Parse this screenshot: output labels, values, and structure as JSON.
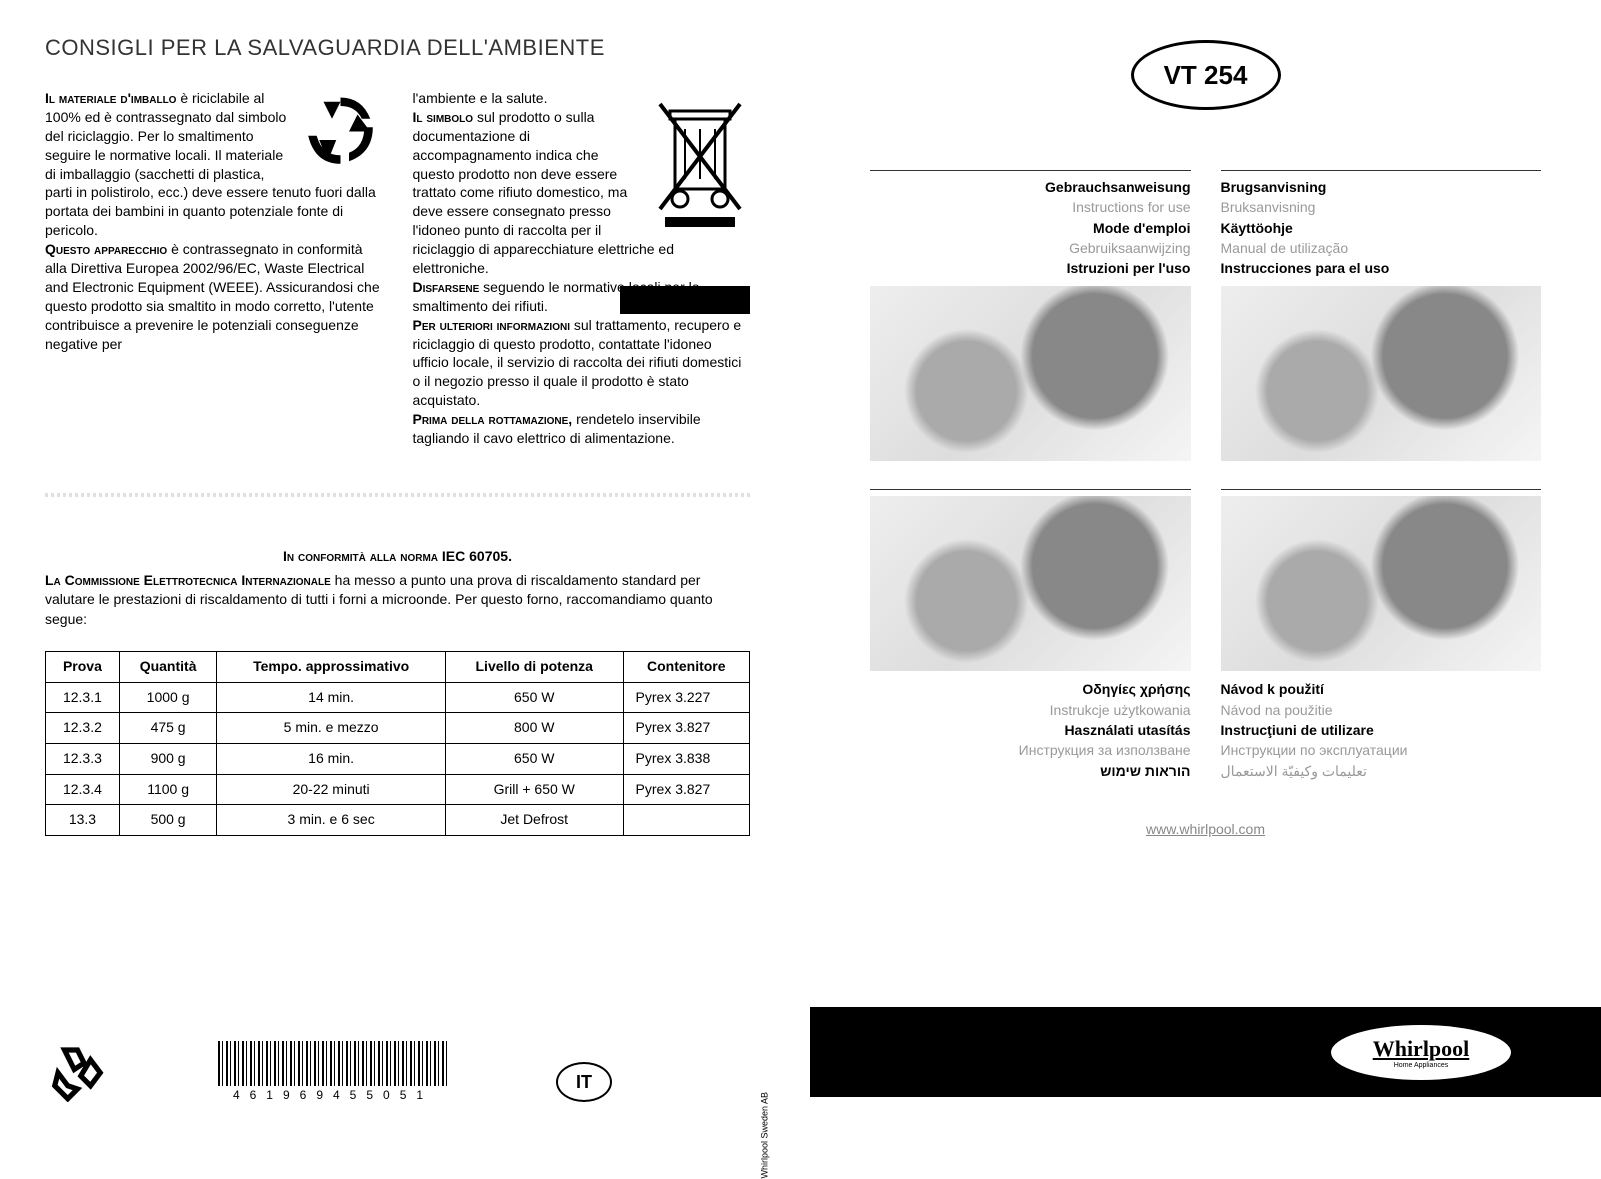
{
  "left": {
    "title": "CONSIGLI PER LA SALVAGUARDIA DELL'AMBIENTE",
    "col1": {
      "lead1_sc": "Il materiale d'imballo",
      "p1": " è riciclabile al 100% ed è contrassegnato dal simbolo del riciclaggio. Per lo smaltimento seguire le normative locali. Il materiale di imballaggio (sacchetti di plastica, parti in polistirolo, ecc.) deve essere tenuto fuori dalla portata dei bambini in quanto potenziale fonte di pericolo.",
      "lead2_sc": "Questo apparecchio",
      "p2": " è contrassegnato in conformità alla Direttiva Europea 2002/96/EC, Waste Electrical and Electronic Equipment (WEEE). Assicurandosi che questo prodotto sia smaltito in modo corretto, l'utente contribuisce a prevenire le potenziali conseguenze negative per"
    },
    "col2": {
      "p1": "l'ambiente e la salute.",
      "lead2_sc": "Il simbolo",
      "p2": " sul prodotto o sulla documentazione di accompagnamento indica che questo prodotto non deve essere trattato come rifiuto domestico, ma deve essere consegnato presso l'idoneo punto di raccolta per il riciclaggio di apparecchiature elettriche ed elettroniche.",
      "lead3_sc": "Disfarsene",
      "p3": " seguendo le normative locali per lo smaltimento dei rifiuti.",
      "lead4_sc": "Per ulteriori informazioni",
      "p4": " sul trattamento, recupero e riciclaggio di questo prodotto, contattate l'idoneo ufficio locale, il servizio di raccolta dei rifiuti domestici o il negozio presso il quale il prodotto è stato acquistato.",
      "lead5_sc": "Prima della rottamazione,",
      "p5": " rendetelo inservibile tagliando il cavo elettrico di alimentazione."
    },
    "conformity": {
      "heading_sc": "In conformità alla norma ",
      "heading_bold": "IEC 60705.",
      "body_lead_sc": "La Commissione Elettrotecnica Internazionale",
      "body": " ha messo a punto una prova di riscaldamento standard per valutare le prestazioni di riscaldamento di tutti i forni a microonde. Per questo forno, raccomandiamo quanto segue:"
    },
    "table": {
      "headers": [
        "Prova",
        "Quantità",
        "Tempo. approssimativo",
        "Livello di potenza",
        "Contenitore"
      ],
      "rows": [
        [
          "12.3.1",
          "1000 g",
          "14 min.",
          "650 W",
          "Pyrex 3.227"
        ],
        [
          "12.3.2",
          "475 g",
          "5 min. e mezzo",
          "800 W",
          "Pyrex 3.827"
        ],
        [
          "12.3.3",
          "900 g",
          "16 min.",
          "650 W",
          "Pyrex 3.838"
        ],
        [
          "12.3.4",
          "1100 g",
          "20-22 minuti",
          "Grill + 650 W",
          "Pyrex 3.827"
        ],
        [
          "13.3",
          "500 g",
          "3 min. e 6 sec",
          "Jet Defrost",
          ""
        ]
      ]
    },
    "barcode_number": "461969455051",
    "lang_code": "IT",
    "credit": "Whirlpool Sweden AB"
  },
  "right": {
    "model": "VT 254",
    "blocks": [
      {
        "side": "left",
        "lines": [
          {
            "text": "Gebrauchsanweisung",
            "style": "lang-bold"
          },
          {
            "text": "Instructions for use",
            "style": "lang-gray"
          },
          {
            "text": "Mode d'emploi",
            "style": "lang-bold"
          },
          {
            "text": "Gebruiksaanwijzing",
            "style": "lang-gray"
          },
          {
            "text": "Istruzioni per l'uso",
            "style": "lang-bold"
          }
        ]
      },
      {
        "side": "right",
        "lines": [
          {
            "text": "Brugsanvisning",
            "style": "lang-bold"
          },
          {
            "text": "Bruksanvisning",
            "style": "lang-gray"
          },
          {
            "text": "Käyttöohje",
            "style": "lang-bold"
          },
          {
            "text": "Manual de utilização",
            "style": "lang-gray"
          },
          {
            "text": "Instrucciones para el uso",
            "style": "lang-bold"
          }
        ]
      },
      {
        "side": "left",
        "lines": [
          {
            "text": "Οδηγίες χρήσης",
            "style": "lang-bold"
          },
          {
            "text": "Instrukcje użytkowania",
            "style": "lang-gray"
          },
          {
            "text": "Használati utasítás",
            "style": "lang-bold"
          },
          {
            "text": "Инструкция за използване",
            "style": "lang-gray"
          },
          {
            "text": "הוראות שימוש",
            "style": "lang-bold"
          }
        ]
      },
      {
        "side": "right",
        "lines": [
          {
            "text": "Návod k použití",
            "style": "lang-bold"
          },
          {
            "text": "Návod na použitie",
            "style": "lang-gray"
          },
          {
            "text": "Instrucţiuni de utilizare",
            "style": "lang-bold"
          },
          {
            "text": "Инструкции по эксплуатации",
            "style": "lang-gray"
          },
          {
            "text": "تعليمات وكيفيّة الاستعمال",
            "style": "lang-gray"
          }
        ]
      }
    ],
    "url": "www.whirlpool.com",
    "brand": "Whirlpool",
    "brand_sub": "Home Appliances"
  },
  "colors": {
    "text": "#000000",
    "gray": "#999999",
    "bg": "#ffffff"
  }
}
